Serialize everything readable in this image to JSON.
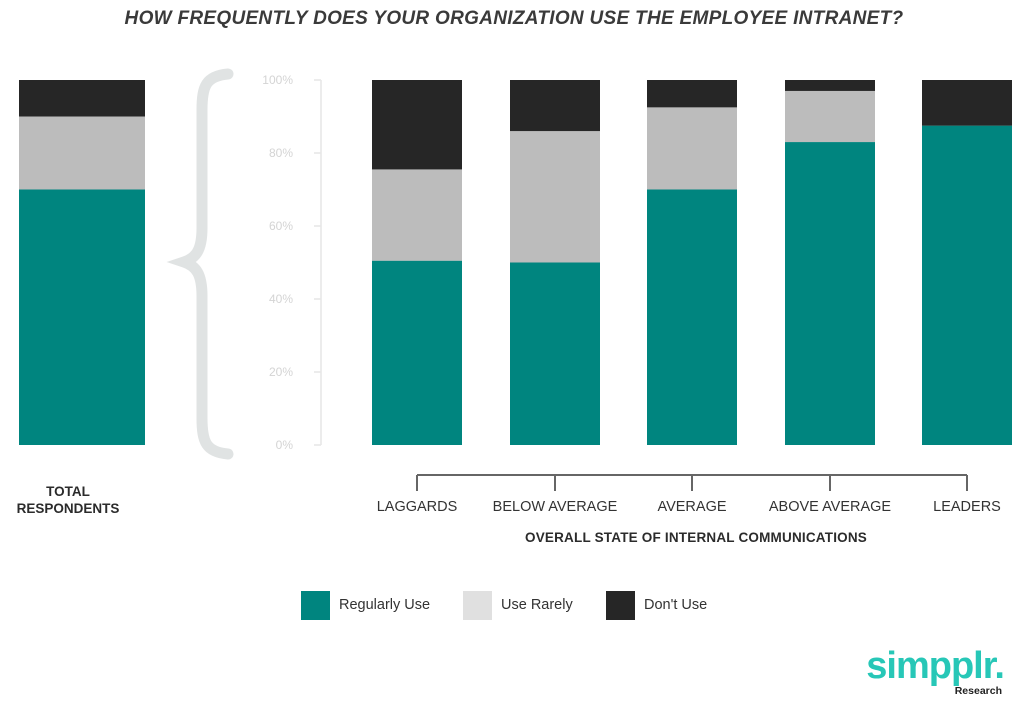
{
  "chart_data": {
    "type": "bar",
    "stacked": true,
    "title": "HOW FREQUENTLY DOES YOUR ORGANIZATION USE THE EMPLOYEE INTRANET?",
    "xlabel": "OVERALL STATE OF INTERNAL COMMUNICATIONS",
    "ylabel": "",
    "ylim": [
      0,
      100
    ],
    "yticks": [
      "0%",
      "20%",
      "40%",
      "60%",
      "80%",
      "100%"
    ],
    "grid": false,
    "legend_position": "bottom",
    "total": {
      "label": "TOTAL RESPONDENTS",
      "values": {
        "regularly": 70,
        "rarely": 20,
        "dont": 10
      }
    },
    "categories": [
      "LAGGARDS",
      "BELOW AVERAGE",
      "AVERAGE",
      "ABOVE AVERAGE",
      "LEADERS"
    ],
    "series": [
      {
        "name": "Regularly Use",
        "color": "#00857f",
        "values": [
          50.5,
          50,
          70,
          83,
          87.5
        ]
      },
      {
        "name": "Use Rarely",
        "color": "#bcbcbc",
        "values": [
          25,
          36,
          22.5,
          14,
          0
        ]
      },
      {
        "name": "Don't Use",
        "color": "#262626",
        "values": [
          24.5,
          14,
          7.5,
          3,
          12.5
        ]
      }
    ],
    "legend_swatch_colors": [
      "#00857f",
      "#e0e0e0",
      "#262626"
    ]
  },
  "logo": {
    "text": "simpplr.",
    "sub": "Research",
    "color": "#27c7b7"
  }
}
